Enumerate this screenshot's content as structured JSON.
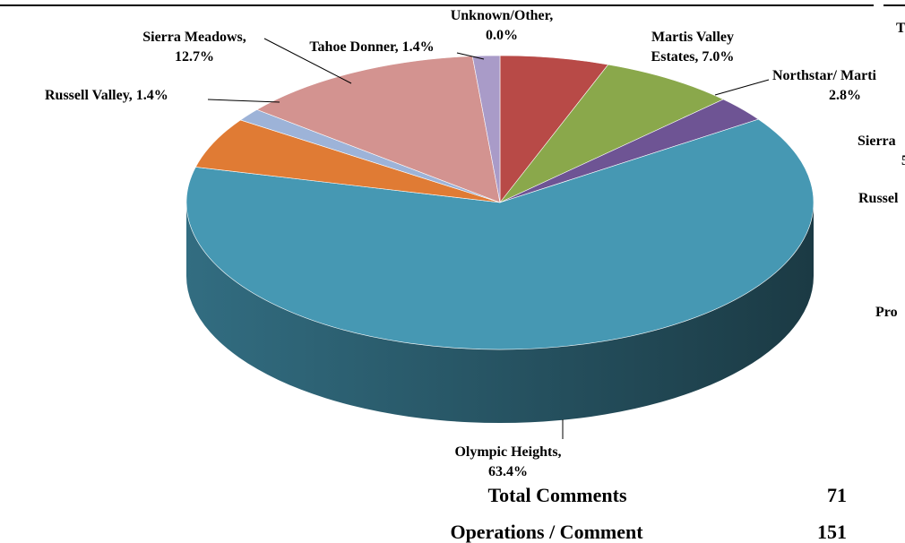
{
  "chart_data": {
    "type": "pie",
    "categories": [
      null,
      "Martis Valley Estates",
      "Northstar/ Marti",
      "Olympic Heights",
      null,
      "Russell Valley",
      "Sierra Meadows",
      "Tahoe Donner",
      "Unknown/Other"
    ],
    "values": [
      5.6,
      7.0,
      2.8,
      63.4,
      5.6,
      1.4,
      12.7,
      1.4,
      0.0
    ],
    "labels": [
      null,
      [
        "Martis Valley",
        "Estates, 7.0%"
      ],
      [
        "Northstar/ Marti",
        "2.8%"
      ],
      [
        "Olympic Heights,",
        "63.4%"
      ],
      null,
      [
        "Russell Valley, 1.4%"
      ],
      [
        "Sierra Meadows,",
        "12.7%"
      ],
      [
        "Tahoe Donner, 1.4%"
      ],
      [
        "Unknown/Other,",
        "0.0%"
      ]
    ],
    "colors": [
      "#b84a47",
      "#8aa84b",
      "#6e5494",
      "#4698b3",
      "#e07b34",
      "#9db3d8",
      "#d39390",
      "#a99bc8",
      "#bcaed8"
    ],
    "cropped_text": [
      "T",
      "Sierra",
      "5",
      "Russel",
      "Pro"
    ]
  },
  "table": {
    "rows": [
      [
        "Total Comments",
        "71"
      ],
      [
        "Operations / Comment",
        "151"
      ]
    ]
  }
}
